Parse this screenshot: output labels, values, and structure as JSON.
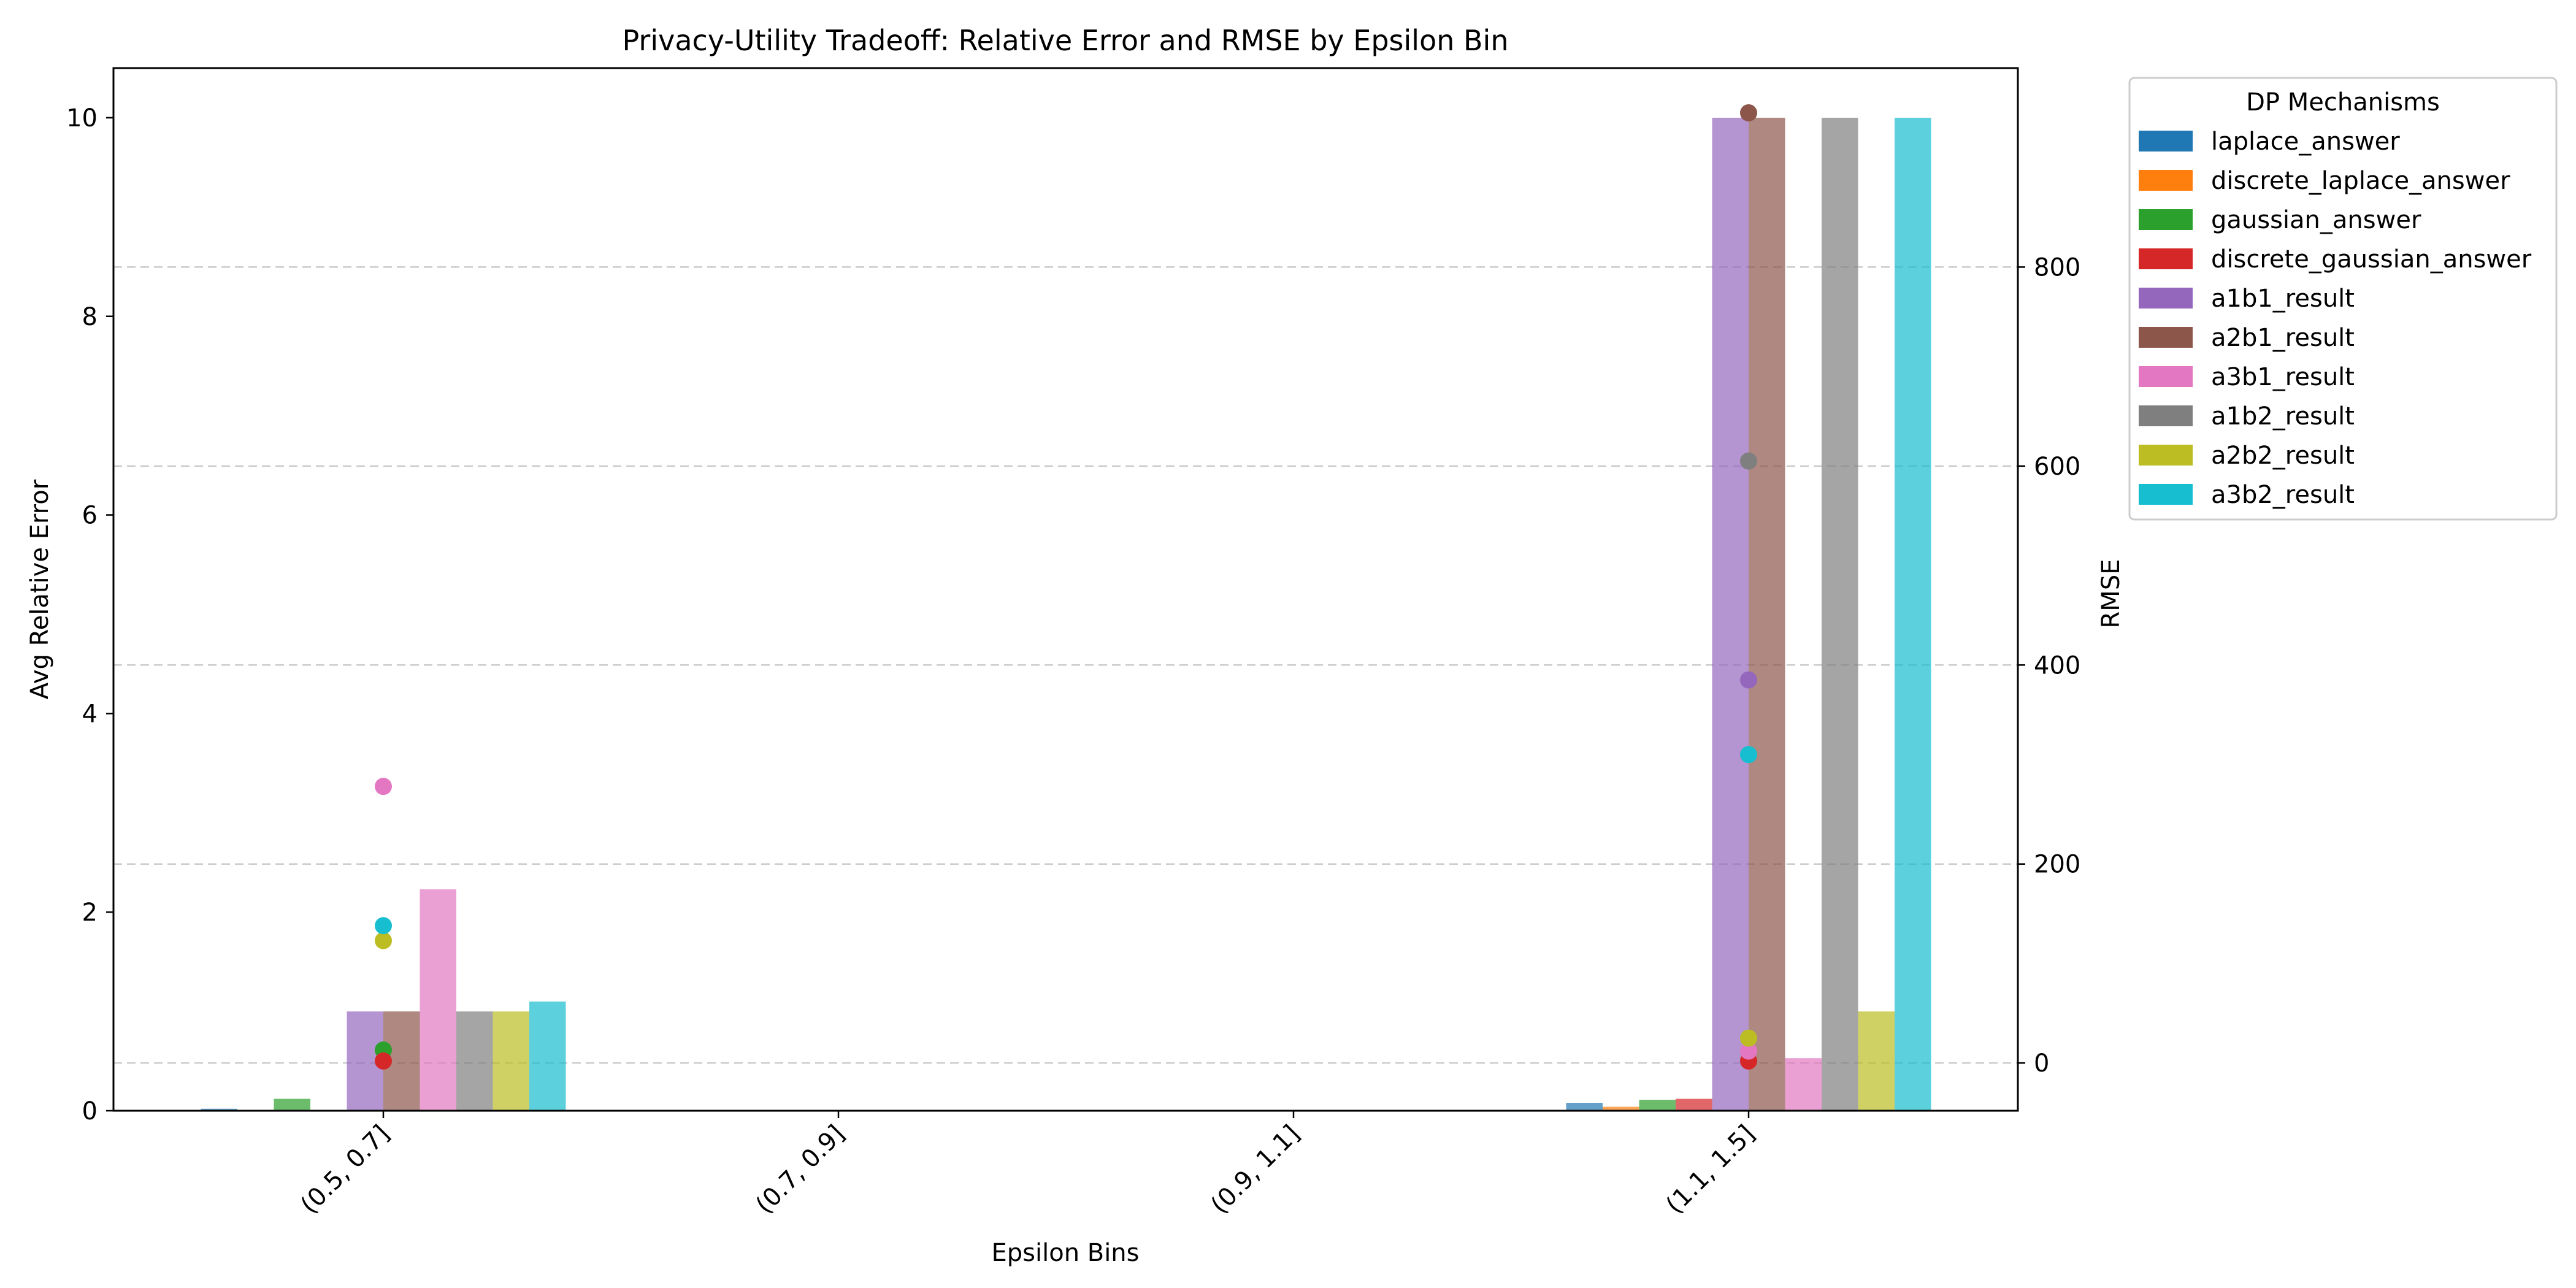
{
  "chart_data": {
    "type": "bar",
    "title": "Privacy-Utility Tradeoff: Relative Error and RMSE by Epsilon Bin",
    "xlabel": "Epsilon Bins",
    "ylabel": "Avg Relative Error",
    "y2label": "RMSE",
    "ylim": [
      0,
      10.5
    ],
    "y2lim": [
      -48,
      1000
    ],
    "yticks": [
      "0",
      "2",
      "4",
      "6",
      "8",
      "10"
    ],
    "y2ticks": [
      "0",
      "200",
      "400",
      "600",
      "800"
    ],
    "categories": [
      "(0.5, 0.7]",
      "(0.7, 0.9]",
      "(0.9, 1.1]",
      "(1.1, 1.5]"
    ],
    "legend_title": "DP Mechanisms",
    "legend_position": "outside upper right",
    "grid": "y2 dashed",
    "series": [
      {
        "name": "laplace_answer",
        "color": "#1f77b4",
        "values": [
          0.02,
          null,
          null,
          0.08
        ],
        "rmse": [
          null,
          null,
          null,
          null
        ]
      },
      {
        "name": "discrete_laplace_answer",
        "color": "#ff7f0e",
        "values": [
          0.0,
          null,
          null,
          0.04
        ],
        "rmse": [
          null,
          null,
          null,
          null
        ]
      },
      {
        "name": "gaussian_answer",
        "color": "#2ca02c",
        "values": [
          0.12,
          null,
          null,
          0.11
        ],
        "rmse": [
          13,
          null,
          null,
          null
        ]
      },
      {
        "name": "discrete_gaussian_answer",
        "color": "#d62728",
        "values": [
          0.0,
          null,
          null,
          0.12
        ],
        "rmse": [
          2,
          null,
          null,
          2
        ]
      },
      {
        "name": "a1b1_result",
        "color": "#9467bd",
        "values": [
          1.0,
          null,
          null,
          10.0
        ],
        "rmse": [
          null,
          null,
          null,
          385
        ]
      },
      {
        "name": "a2b1_result",
        "color": "#8c564b",
        "values": [
          1.0,
          null,
          null,
          10.0
        ],
        "rmse": [
          null,
          null,
          null,
          955
        ]
      },
      {
        "name": "a3b1_result",
        "color": "#e377c2",
        "values": [
          2.23,
          null,
          null,
          0.53
        ],
        "rmse": [
          278,
          null,
          null,
          12
        ]
      },
      {
        "name": "a1b2_result",
        "color": "#7f7f7f",
        "values": [
          1.0,
          null,
          null,
          10.0
        ],
        "rmse": [
          null,
          null,
          null,
          605
        ]
      },
      {
        "name": "a2b2_result",
        "color": "#bcbd22",
        "values": [
          1.0,
          null,
          null,
          1.0
        ],
        "rmse": [
          123,
          null,
          null,
          25
        ]
      },
      {
        "name": "a3b2_result",
        "color": "#17becf",
        "values": [
          1.1,
          null,
          null,
          10.0
        ],
        "rmse": [
          138,
          null,
          null,
          310
        ]
      }
    ]
  }
}
